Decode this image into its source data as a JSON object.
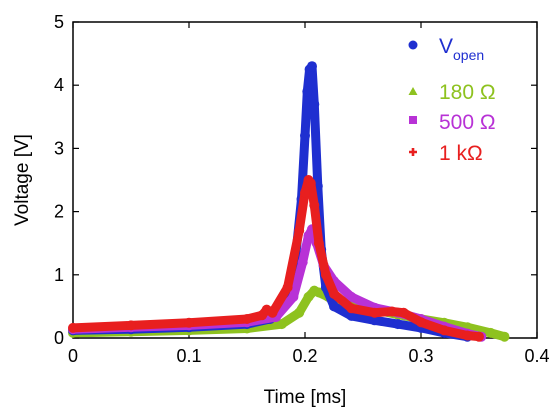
{
  "chart_data": {
    "type": "scatter",
    "title": "",
    "xlabel": "Time [ms]",
    "ylabel": "Voltage [V]",
    "xlim": [
      0,
      0.4
    ],
    "ylim": [
      0,
      5
    ],
    "xticks": [
      "0",
      "0.1",
      "0.2",
      "0.3",
      "0.4"
    ],
    "yticks": [
      "0",
      "1",
      "2",
      "3",
      "4",
      "5"
    ],
    "xtick_values": [
      0,
      0.1,
      0.2,
      0.3,
      0.4
    ],
    "ytick_values": [
      0,
      1,
      2,
      3,
      4,
      5
    ],
    "grid": false,
    "legend_position": "top-right",
    "series": [
      {
        "name": "V",
        "name_subscript": "open",
        "color": "#1f2fd0",
        "marker": "circle",
        "x": [
          0.0,
          0.05,
          0.1,
          0.15,
          0.17,
          0.185,
          0.192,
          0.197,
          0.2,
          0.202,
          0.204,
          0.206,
          0.208,
          0.211,
          0.214,
          0.218,
          0.225,
          0.24,
          0.26,
          0.28,
          0.3,
          0.32,
          0.34
        ],
        "y": [
          0.12,
          0.14,
          0.17,
          0.22,
          0.3,
          0.6,
          1.3,
          2.2,
          3.2,
          3.9,
          4.25,
          4.3,
          3.7,
          2.4,
          1.4,
          0.8,
          0.5,
          0.35,
          0.28,
          0.22,
          0.16,
          0.08,
          0.02
        ]
      },
      {
        "name": "180 Ω",
        "color": "#8ec21f",
        "marker": "triangle",
        "x": [
          0.0,
          0.05,
          0.1,
          0.15,
          0.18,
          0.195,
          0.203,
          0.208,
          0.212,
          0.22,
          0.24,
          0.26,
          0.28,
          0.3,
          0.32,
          0.34,
          0.36,
          0.372
        ],
        "y": [
          0.08,
          0.1,
          0.12,
          0.15,
          0.22,
          0.4,
          0.65,
          0.75,
          0.72,
          0.65,
          0.55,
          0.45,
          0.37,
          0.3,
          0.24,
          0.17,
          0.08,
          0.02
        ]
      },
      {
        "name": "500 Ω",
        "color": "#b832d6",
        "marker": "square",
        "x": [
          0.0,
          0.05,
          0.1,
          0.15,
          0.175,
          0.19,
          0.198,
          0.203,
          0.206,
          0.21,
          0.216,
          0.225,
          0.24,
          0.26,
          0.28,
          0.3,
          0.32,
          0.34,
          0.352
        ],
        "y": [
          0.14,
          0.17,
          0.2,
          0.25,
          0.33,
          0.65,
          1.2,
          1.62,
          1.72,
          1.5,
          1.15,
          0.9,
          0.65,
          0.48,
          0.4,
          0.3,
          0.18,
          0.07,
          0.02
        ]
      },
      {
        "name": "1 kΩ",
        "color": "#e81f1f",
        "marker": "plus",
        "x": [
          0.0,
          0.05,
          0.1,
          0.15,
          0.163,
          0.167,
          0.172,
          0.185,
          0.195,
          0.2,
          0.203,
          0.205,
          0.208,
          0.212,
          0.218,
          0.225,
          0.24,
          0.26,
          0.275,
          0.285,
          0.3,
          0.32,
          0.34,
          0.35
        ],
        "y": [
          0.16,
          0.2,
          0.24,
          0.3,
          0.36,
          0.45,
          0.4,
          0.8,
          1.7,
          2.3,
          2.5,
          2.45,
          2.1,
          1.5,
          1.0,
          0.7,
          0.47,
          0.4,
          0.42,
          0.4,
          0.25,
          0.12,
          0.04,
          0.02
        ]
      }
    ]
  }
}
